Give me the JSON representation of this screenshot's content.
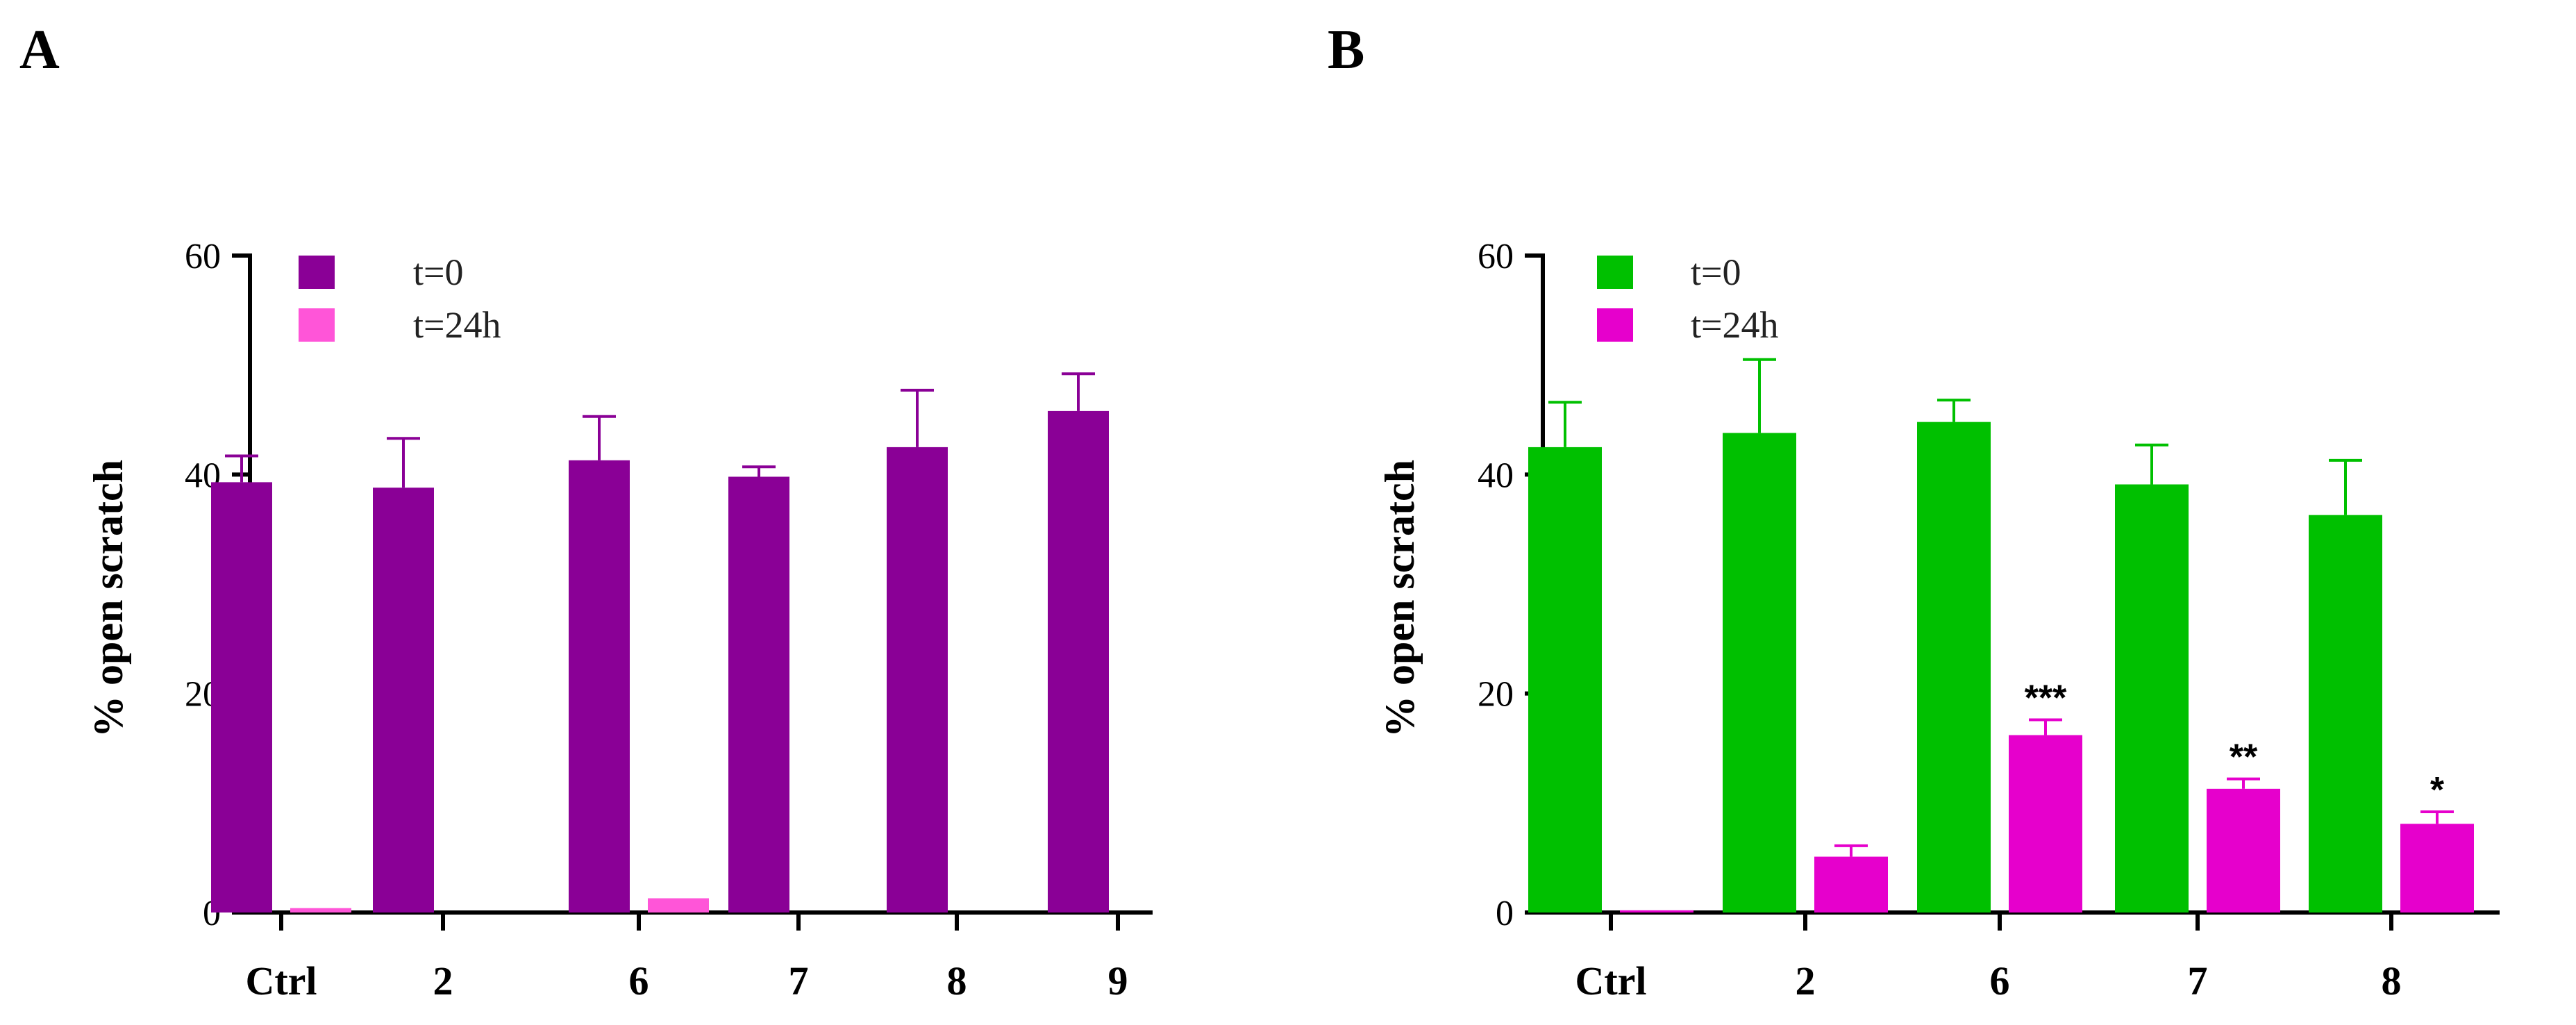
{
  "chart_data": [
    {
      "panel": "A",
      "type": "bar",
      "title": "",
      "xlabel": "",
      "ylabel": "% open scratch",
      "ylim": [
        0,
        60
      ],
      "yticks": [
        "0",
        "20",
        "40",
        "60"
      ],
      "categories": [
        "Ctrl",
        "2",
        "6",
        "7",
        "8",
        "9"
      ],
      "series": [
        {
          "name": "t=0",
          "color": "#8a0096",
          "values": [
            39.3,
            38.8,
            41.3,
            39.8,
            42.5,
            45.8
          ],
          "errors": [
            2.4,
            4.5,
            4.0,
            0.9,
            5.2,
            3.4
          ]
        },
        {
          "name": "t=24h",
          "color": "#ff55d8",
          "values": [
            0.4,
            0,
            1.3,
            0,
            0,
            0
          ],
          "errors": [
            0,
            0,
            0,
            0,
            0,
            0
          ]
        }
      ],
      "significance": [
        "",
        "",
        "",
        "",
        "",
        ""
      ],
      "legend": "top-left"
    },
    {
      "panel": "B",
      "type": "bar",
      "title": "",
      "xlabel": "",
      "ylabel": "% open scratch",
      "ylim": [
        0,
        60
      ],
      "yticks": [
        "0",
        "20",
        "40",
        "60"
      ],
      "categories": [
        "Ctrl",
        "2",
        "6",
        "7",
        "8"
      ],
      "series": [
        {
          "name": "t=0",
          "color": "#00c000",
          "values": [
            42.5,
            43.8,
            44.8,
            39.1,
            36.3
          ],
          "errors": [
            4.1,
            6.7,
            2.0,
            3.6,
            5.0
          ]
        },
        {
          "name": "t=24h",
          "color": "#e600cc",
          "values": [
            0.2,
            5.1,
            16.2,
            11.3,
            8.1
          ],
          "errors": [
            0,
            1.0,
            1.4,
            0.9,
            1.1
          ]
        }
      ],
      "significance": [
        "",
        "",
        "***",
        "**",
        "*"
      ],
      "legend": "top-left"
    }
  ]
}
